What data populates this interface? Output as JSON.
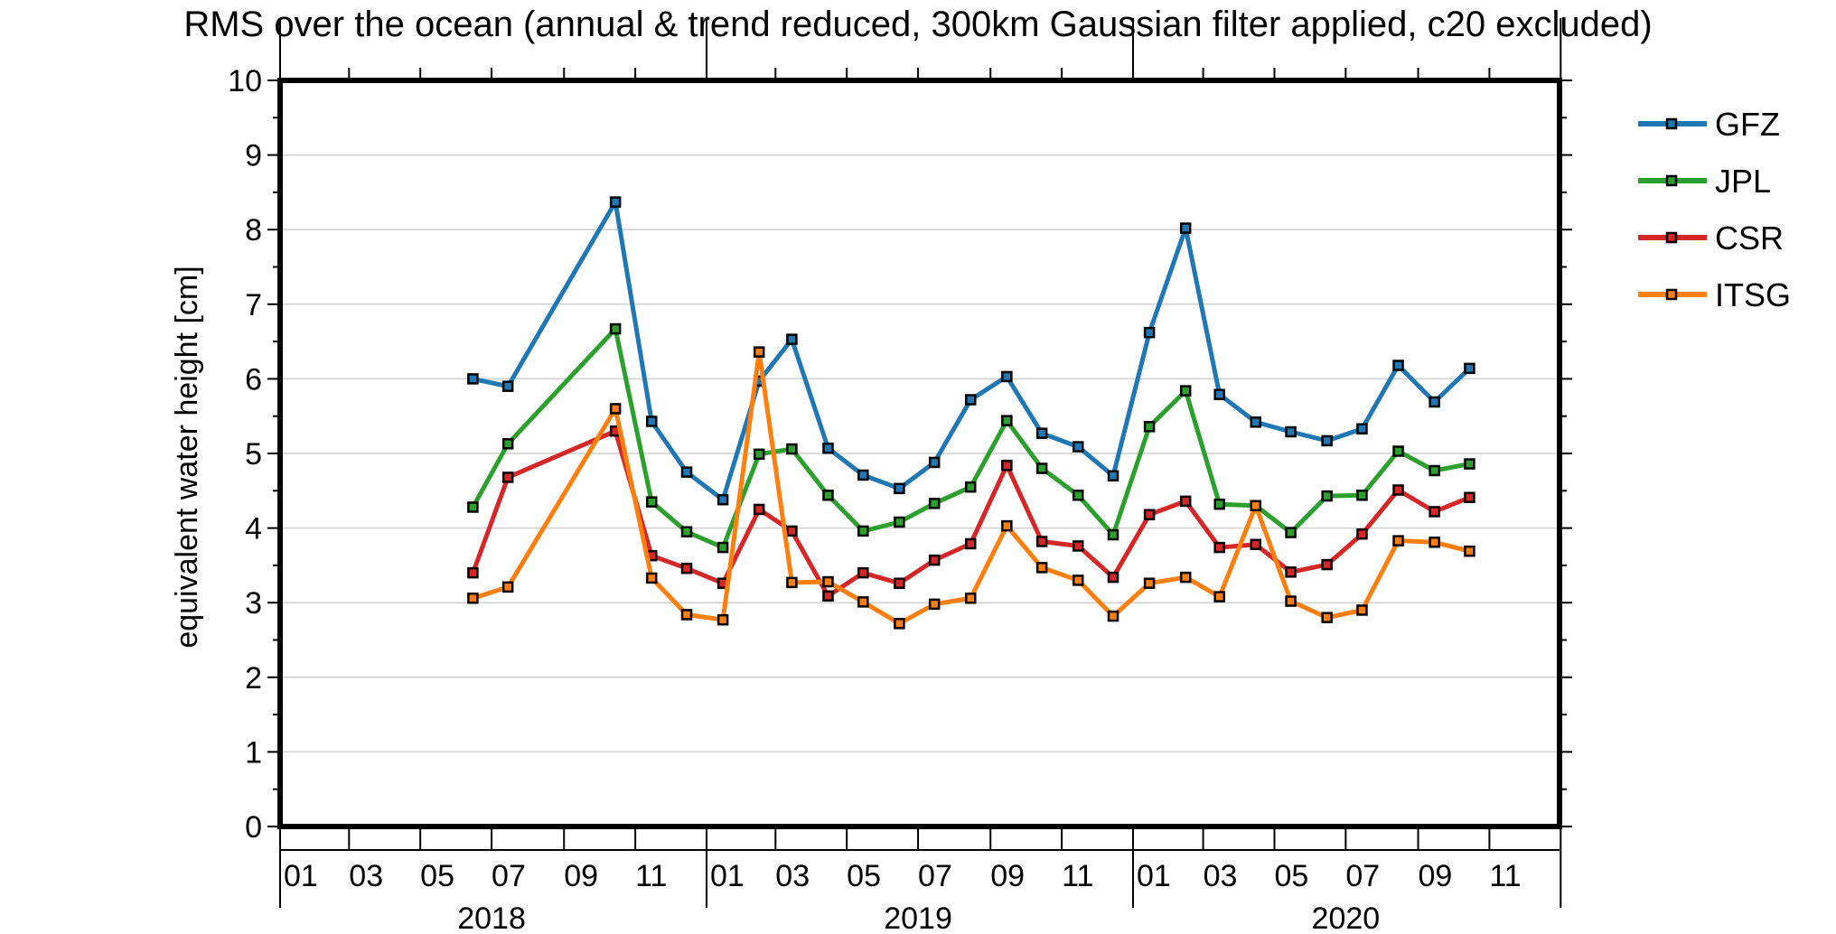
{
  "chart_data": {
    "type": "line",
    "title": "RMS over the ocean (annual & trend reduced, 300km Gaussian filter applied, c20 excluded)",
    "xlabel": "",
    "ylabel": "equivalent water height [cm]",
    "ylim": [
      0,
      10
    ],
    "yticks": [
      "0",
      "1",
      "2",
      "3",
      "4",
      "5",
      "6",
      "7",
      "8",
      "9",
      "10"
    ],
    "xlim": [
      "2018-01-01",
      "2020-12-31"
    ],
    "xticks": [
      {
        "date": "2018-01-01",
        "label": "01"
      },
      {
        "date": "2018-03-01",
        "label": "03"
      },
      {
        "date": "2018-05-01",
        "label": "05"
      },
      {
        "date": "2018-07-01",
        "label": "07"
      },
      {
        "date": "2018-09-01",
        "label": "09"
      },
      {
        "date": "2018-11-01",
        "label": "11"
      },
      {
        "date": "2019-01-01",
        "label": "01"
      },
      {
        "date": "2019-03-01",
        "label": "03"
      },
      {
        "date": "2019-05-01",
        "label": "05"
      },
      {
        "date": "2019-07-01",
        "label": "07"
      },
      {
        "date": "2019-09-01",
        "label": "09"
      },
      {
        "date": "2019-11-01",
        "label": "11"
      },
      {
        "date": "2020-01-01",
        "label": "01"
      },
      {
        "date": "2020-03-01",
        "label": "03"
      },
      {
        "date": "2020-05-01",
        "label": "05"
      },
      {
        "date": "2020-07-01",
        "label": "07"
      },
      {
        "date": "2020-09-01",
        "label": "09"
      },
      {
        "date": "2020-11-01",
        "label": "11"
      }
    ],
    "year_labels": [
      {
        "date": "2018-07-01",
        "label": "2018"
      },
      {
        "date": "2019-07-01",
        "label": "2019"
      },
      {
        "date": "2020-07-01",
        "label": "2020"
      }
    ],
    "year_ticks": [
      "2018-01-01",
      "2019-01-01",
      "2020-01-01",
      "2021-01-01"
    ],
    "grid": "horizontal",
    "legend_position": "outside-right",
    "x": [
      "2018-06-15",
      "2018-07-15",
      "2018-10-15",
      "2018-11-15",
      "2018-12-15",
      "2019-01-15",
      "2019-02-15",
      "2019-03-15",
      "2019-04-15",
      "2019-05-15",
      "2019-06-15",
      "2019-07-15",
      "2019-08-15",
      "2019-09-15",
      "2019-10-15",
      "2019-11-15",
      "2019-12-15",
      "2020-01-15",
      "2020-02-15",
      "2020-03-15",
      "2020-04-15",
      "2020-05-15",
      "2020-06-15",
      "2020-07-15",
      "2020-08-15",
      "2020-09-15",
      "2020-10-15"
    ],
    "series": [
      {
        "name": "GFZ",
        "color": "#1f77b4",
        "values": [
          6.0,
          5.9,
          8.37,
          5.43,
          4.75,
          4.38,
          5.97,
          6.53,
          5.07,
          4.71,
          4.53,
          4.88,
          5.72,
          6.03,
          5.27,
          5.09,
          4.7,
          6.62,
          8.02,
          5.79,
          5.42,
          5.29,
          5.17,
          5.33,
          6.18,
          5.69,
          6.14
        ]
      },
      {
        "name": "JPL",
        "color": "#2ca02c",
        "values": [
          4.28,
          5.13,
          6.67,
          4.35,
          3.95,
          3.74,
          4.99,
          5.06,
          4.44,
          3.96,
          4.08,
          4.33,
          4.55,
          5.44,
          4.8,
          4.44,
          3.91,
          5.36,
          5.84,
          4.32,
          4.3,
          3.94,
          4.43,
          4.44,
          5.03,
          4.77,
          4.86
        ]
      },
      {
        "name": "CSR",
        "color": "#d62728",
        "values": [
          3.4,
          4.68,
          5.3,
          3.63,
          3.46,
          3.26,
          4.25,
          3.96,
          3.09,
          3.4,
          3.26,
          3.57,
          3.79,
          4.84,
          3.82,
          3.76,
          3.34,
          4.18,
          4.36,
          3.74,
          3.78,
          3.41,
          3.51,
          3.92,
          4.51,
          4.22,
          4.41
        ]
      },
      {
        "name": "ITSG",
        "color": "#ff7f0e",
        "values": [
          3.06,
          3.21,
          5.6,
          3.33,
          2.84,
          2.77,
          6.36,
          3.27,
          3.28,
          3.01,
          2.72,
          2.98,
          3.06,
          4.03,
          3.47,
          3.3,
          2.82,
          3.26,
          3.34,
          3.08,
          4.3,
          3.02,
          2.8,
          2.9,
          3.83,
          3.81,
          3.69
        ]
      }
    ]
  }
}
